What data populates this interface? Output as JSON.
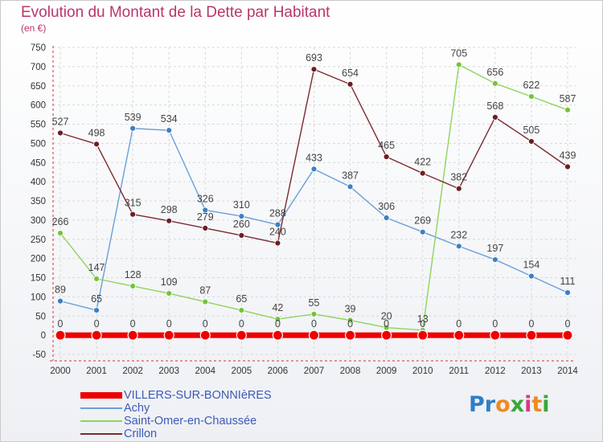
{
  "title": "Evolution du Montant de la Dette par Habitant",
  "unit_label": "(en €)",
  "logo": {
    "text": "Proxiti",
    "letter_colors": [
      "#2f7fc4",
      "#2f7fc4",
      "#ef8a1e",
      "#3aa63a",
      "#d33b8a",
      "#ef8a1e",
      "#3aa63a"
    ]
  },
  "chart_data": {
    "type": "line",
    "x": [
      "2000",
      "2001",
      "2002",
      "2003",
      "2004",
      "2005",
      "2006",
      "2007",
      "2008",
      "2009",
      "2010",
      "2011",
      "2012",
      "2013",
      "2014"
    ],
    "ylim": [
      -50,
      750
    ],
    "yticks": [
      -50,
      0,
      50,
      100,
      150,
      200,
      250,
      300,
      350,
      400,
      450,
      500,
      550,
      600,
      650,
      700,
      750
    ],
    "grid": true,
    "legend_position": "bottom-left",
    "series": [
      {
        "name": "VILLERS-SUR-BONNIèRES",
        "color": "#ee0000",
        "marker": "#ee0000",
        "thick": true,
        "values": [
          0,
          0,
          0,
          0,
          0,
          0,
          0,
          0,
          0,
          0,
          0,
          0,
          0,
          0,
          0
        ]
      },
      {
        "name": "Achy",
        "color": "#6a9fd6",
        "marker": "#3f7fc1",
        "values": [
          89,
          65,
          539,
          534,
          326,
          310,
          288,
          433,
          387,
          306,
          269,
          232,
          197,
          154,
          111
        ]
      },
      {
        "name": "Saint-Omer-en-Chaussée",
        "color": "#8ed45c",
        "marker": "#76c43a",
        "values": [
          266,
          147,
          128,
          109,
          87,
          65,
          42,
          55,
          39,
          20,
          13,
          705,
          656,
          622,
          587
        ]
      },
      {
        "name": "Crillon",
        "color": "#7a2b30",
        "marker": "#6b1f24",
        "values": [
          527,
          498,
          315,
          298,
          279,
          260,
          240,
          693,
          654,
          465,
          422,
          382,
          568,
          505,
          439
        ]
      }
    ]
  }
}
